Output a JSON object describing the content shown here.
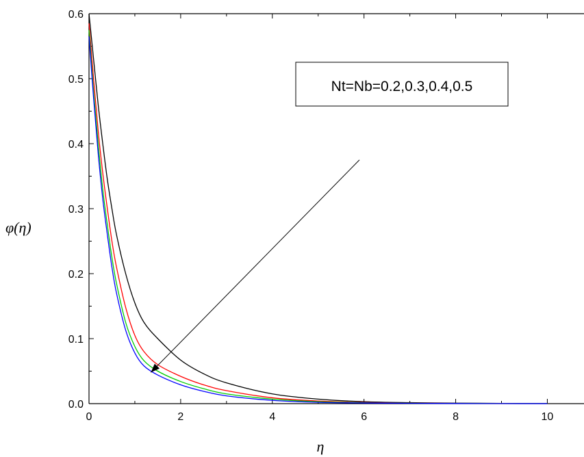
{
  "chart_data": {
    "type": "line",
    "title": "",
    "xlabel": "η",
    "ylabel": "φ(η)",
    "xlim": [
      0,
      10.8
    ],
    "ylim": [
      0,
      0.6
    ],
    "x_ticks": [
      "0",
      "2",
      "4",
      "6",
      "8",
      "10"
    ],
    "y_ticks": [
      "0.0",
      "0.1",
      "0.2",
      "0.3",
      "0.4",
      "0.5",
      "0.6"
    ],
    "grid": false,
    "legend": null,
    "annotation": {
      "text": "Nt=Nb=0.2,0.3,0.4,0.5",
      "arrow_from": [
        5.9,
        0.375
      ],
      "arrow_to": [
        1.35,
        0.048
      ]
    },
    "series": [
      {
        "color": "#000000",
        "x": [
          0,
          0.1,
          0.2,
          0.3,
          0.4,
          0.5,
          0.6,
          0.8,
          1.0,
          1.2,
          1.5,
          2.0,
          2.5,
          3.0,
          4.0,
          5.0,
          6.0,
          7.0,
          8.0,
          9.0,
          10.0
        ],
        "y": [
          0.6,
          0.53,
          0.46,
          0.4,
          0.345,
          0.3,
          0.26,
          0.2,
          0.155,
          0.125,
          0.1,
          0.067,
          0.046,
          0.032,
          0.015,
          0.007,
          0.003,
          0.0015,
          0.0008,
          0.0004,
          0.0002
        ]
      },
      {
        "color": "#ff0000",
        "x": [
          0,
          0.1,
          0.2,
          0.3,
          0.4,
          0.5,
          0.6,
          0.8,
          1.0,
          1.2,
          1.5,
          2.0,
          2.5,
          3.0,
          4.0,
          5.0,
          6.0,
          7.0,
          8.0,
          9.0,
          10.0
        ],
        "y": [
          0.585,
          0.5,
          0.42,
          0.355,
          0.3,
          0.25,
          0.21,
          0.148,
          0.105,
          0.08,
          0.06,
          0.042,
          0.029,
          0.02,
          0.009,
          0.004,
          0.0018,
          0.0008,
          0.0004,
          0.0002,
          0.0001
        ]
      },
      {
        "color": "#00cc00",
        "x": [
          0,
          0.1,
          0.2,
          0.3,
          0.4,
          0.5,
          0.6,
          0.8,
          1.0,
          1.2,
          1.5,
          2.0,
          2.5,
          3.0,
          4.0,
          5.0,
          6.0,
          7.0,
          8.0,
          9.0,
          10.0
        ],
        "y": [
          0.575,
          0.48,
          0.4,
          0.33,
          0.275,
          0.225,
          0.185,
          0.125,
          0.088,
          0.066,
          0.05,
          0.034,
          0.023,
          0.015,
          0.007,
          0.003,
          0.0013,
          0.0006,
          0.0003,
          0.00015,
          0.0001
        ]
      },
      {
        "color": "#0000ff",
        "x": [
          0,
          0.1,
          0.2,
          0.3,
          0.4,
          0.5,
          0.6,
          0.8,
          1.0,
          1.2,
          1.5,
          2.0,
          2.5,
          3.0,
          4.0,
          5.0,
          6.0,
          7.0,
          8.0,
          9.0,
          10.0
        ],
        "y": [
          0.565,
          0.47,
          0.385,
          0.315,
          0.26,
          0.21,
          0.17,
          0.113,
          0.078,
          0.058,
          0.044,
          0.029,
          0.019,
          0.012,
          0.005,
          0.002,
          0.001,
          0.0005,
          0.0002,
          0.0001,
          5e-05
        ]
      }
    ]
  }
}
